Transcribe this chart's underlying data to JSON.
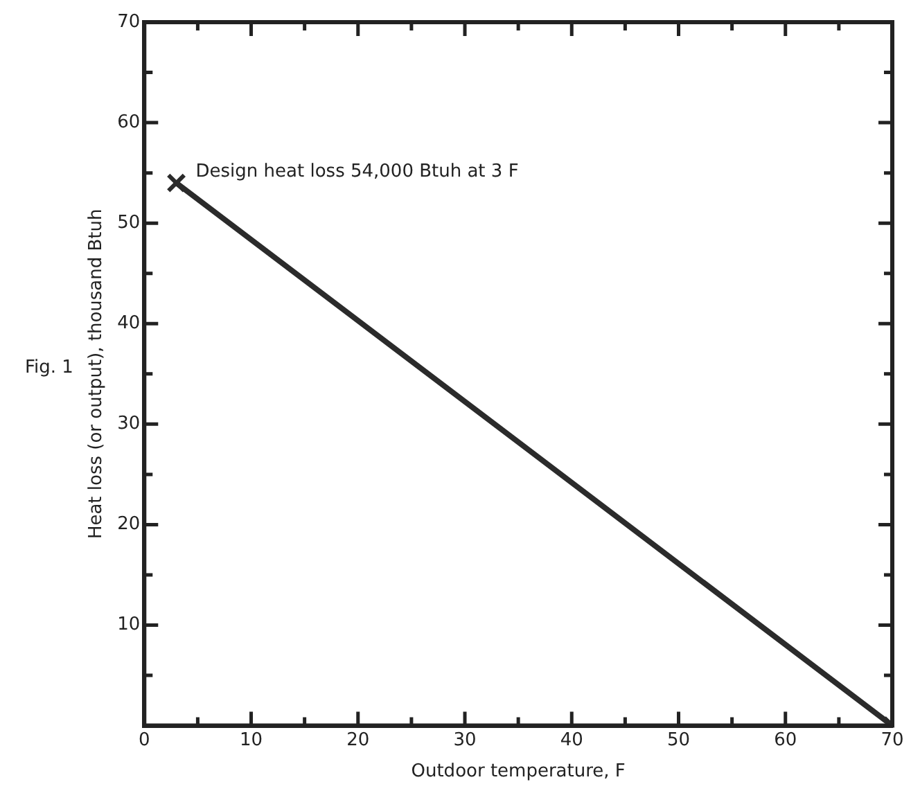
{
  "chart_data": {
    "type": "line",
    "xlabel": "Outdoor temperature, F",
    "ylabel": "Heat loss (or output), thousand Btuh",
    "x": [
      3,
      70
    ],
    "series": [
      {
        "color": "#2b2b2b",
        "values": [
          54,
          0
        ]
      }
    ],
    "xlim": [
      0,
      70
    ],
    "ylim": [
      0,
      70
    ],
    "xticks": [
      0,
      {
        "value": 5,
        "label": null
      },
      10,
      {
        "value": 15,
        "label": null
      },
      20,
      {
        "value": 25,
        "label": null
      },
      30,
      {
        "value": 35,
        "label": null
      },
      40,
      {
        "value": 45,
        "label": null
      },
      50,
      {
        "value": 55,
        "label": null
      },
      60,
      {
        "value": 65,
        "label": null
      },
      70
    ],
    "yticks": [
      {
        "value": 5,
        "label": null
      },
      10,
      {
        "value": 15,
        "label": null
      },
      20,
      {
        "value": 25,
        "label": null
      },
      30,
      {
        "value": 35,
        "label": null
      },
      40,
      {
        "value": 45,
        "label": null
      },
      50,
      {
        "value": 55,
        "label": null
      },
      60,
      {
        "value": 65,
        "label": null
      },
      70
    ],
    "marker": "cross",
    "line_style": "solid",
    "grid": false,
    "legend": false,
    "annotations": [
      {
        "text": "Design heat loss 54,000 Btuh at 3 F",
        "x": 3,
        "y": 54
      },
      "Fig. 1"
    ]
  }
}
